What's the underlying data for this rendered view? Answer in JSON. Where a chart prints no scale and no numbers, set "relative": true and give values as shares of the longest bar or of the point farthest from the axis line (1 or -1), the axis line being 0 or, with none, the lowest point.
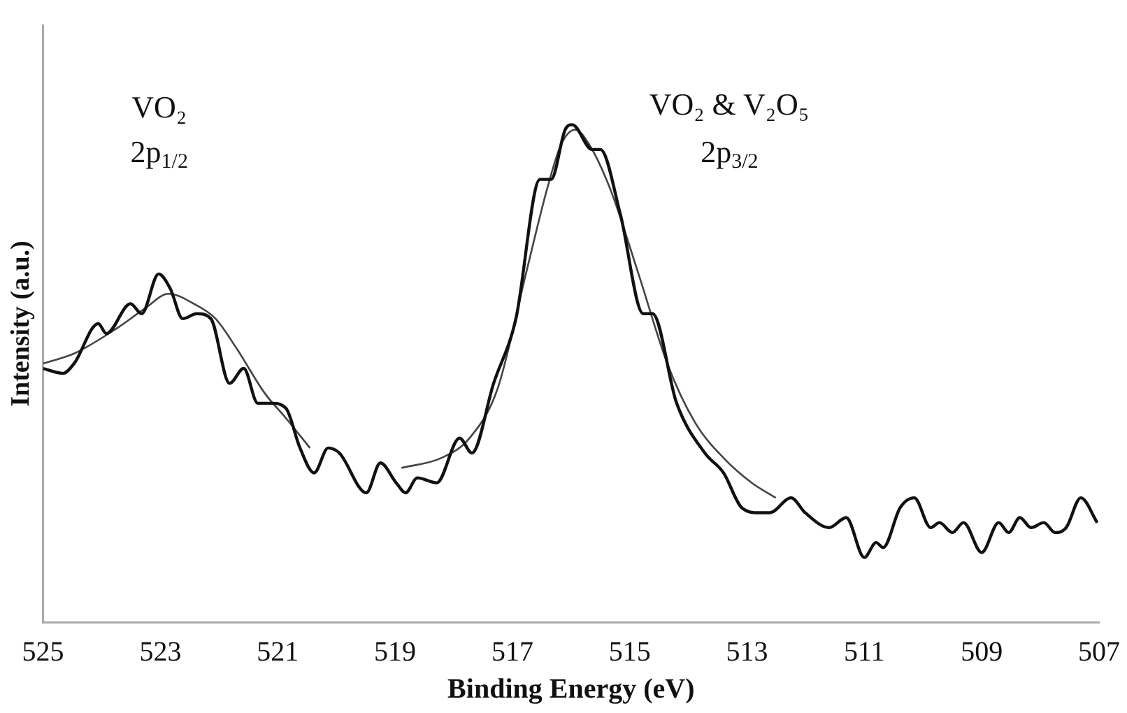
{
  "chart_data": {
    "type": "line",
    "xlabel": "Binding Energy (eV)",
    "ylabel": "Intensity (a.u.)",
    "relative": true,
    "xlim": [
      525,
      507
    ],
    "xticks": [
      525,
      523,
      521,
      519,
      517,
      515,
      513,
      511,
      509,
      507
    ],
    "grid": false,
    "legend": false,
    "marker": "none",
    "line_style": "solid",
    "annotations": [
      "VO₂",
      "2p$_{1/2}$",
      "VO₂ & V₂O₅",
      "2p$_{3/2}$"
    ],
    "series": [
      {
        "color": "#111111",
        "x": [
          525.0,
          524.66,
          524.47,
          524.06,
          523.92,
          523.51,
          523.32,
          523.03,
          522.83,
          522.62,
          522.38,
          522.14,
          521.82,
          521.58,
          521.34,
          521.1,
          520.86,
          520.62,
          520.38,
          520.14,
          519.95,
          519.49,
          519.25,
          518.98,
          518.82,
          518.62,
          518.29,
          517.9,
          517.69,
          517.32,
          516.94,
          516.53,
          516.34,
          516.1,
          515.98,
          515.64,
          515.5,
          515.16,
          514.77,
          514.61,
          514.2,
          513.72,
          513.4,
          513.09,
          512.8,
          512.61,
          512.25,
          512.01,
          511.6,
          511.31,
          511.0,
          510.8,
          510.68,
          510.39,
          510.15,
          509.87,
          509.72,
          509.5,
          509.31,
          509.0,
          508.71,
          508.54,
          508.35,
          508.16,
          507.94,
          507.75,
          507.56,
          507.31,
          507.03
        ],
        "values": [
          0.51,
          0.5,
          0.52,
          0.6,
          0.58,
          0.64,
          0.62,
          0.7,
          0.67,
          0.61,
          0.62,
          0.61,
          0.48,
          0.51,
          0.44,
          0.44,
          0.43,
          0.35,
          0.3,
          0.35,
          0.34,
          0.26,
          0.32,
          0.28,
          0.26,
          0.29,
          0.28,
          0.37,
          0.34,
          0.48,
          0.61,
          0.89,
          0.89,
          0.99,
          1.0,
          0.95,
          0.95,
          0.82,
          0.62,
          0.62,
          0.44,
          0.34,
          0.3,
          0.23,
          0.22,
          0.22,
          0.25,
          0.22,
          0.19,
          0.21,
          0.13,
          0.16,
          0.15,
          0.23,
          0.25,
          0.19,
          0.2,
          0.18,
          0.2,
          0.14,
          0.2,
          0.18,
          0.21,
          0.19,
          0.2,
          0.18,
          0.19,
          0.25,
          0.2
        ]
      },
      {
        "color": "#444444",
        "x": [
          525.0,
          524.47,
          523.75,
          523.27,
          522.86,
          522.43,
          522.06,
          521.7,
          521.22,
          520.86,
          520.45
        ],
        "values": [
          0.52,
          0.54,
          0.59,
          0.63,
          0.66,
          0.64,
          0.61,
          0.55,
          0.46,
          0.41,
          0.35
        ]
      },
      {
        "color": "#444444",
        "x": [
          518.89,
          518.21,
          517.73,
          517.25,
          516.77,
          516.41,
          516.17,
          515.93,
          515.69,
          515.33,
          514.85,
          514.36,
          513.88,
          513.4,
          512.92,
          512.51
        ],
        "values": [
          0.31,
          0.33,
          0.37,
          0.47,
          0.7,
          0.87,
          0.96,
          0.99,
          0.96,
          0.87,
          0.7,
          0.52,
          0.4,
          0.33,
          0.28,
          0.25
        ]
      }
    ]
  }
}
